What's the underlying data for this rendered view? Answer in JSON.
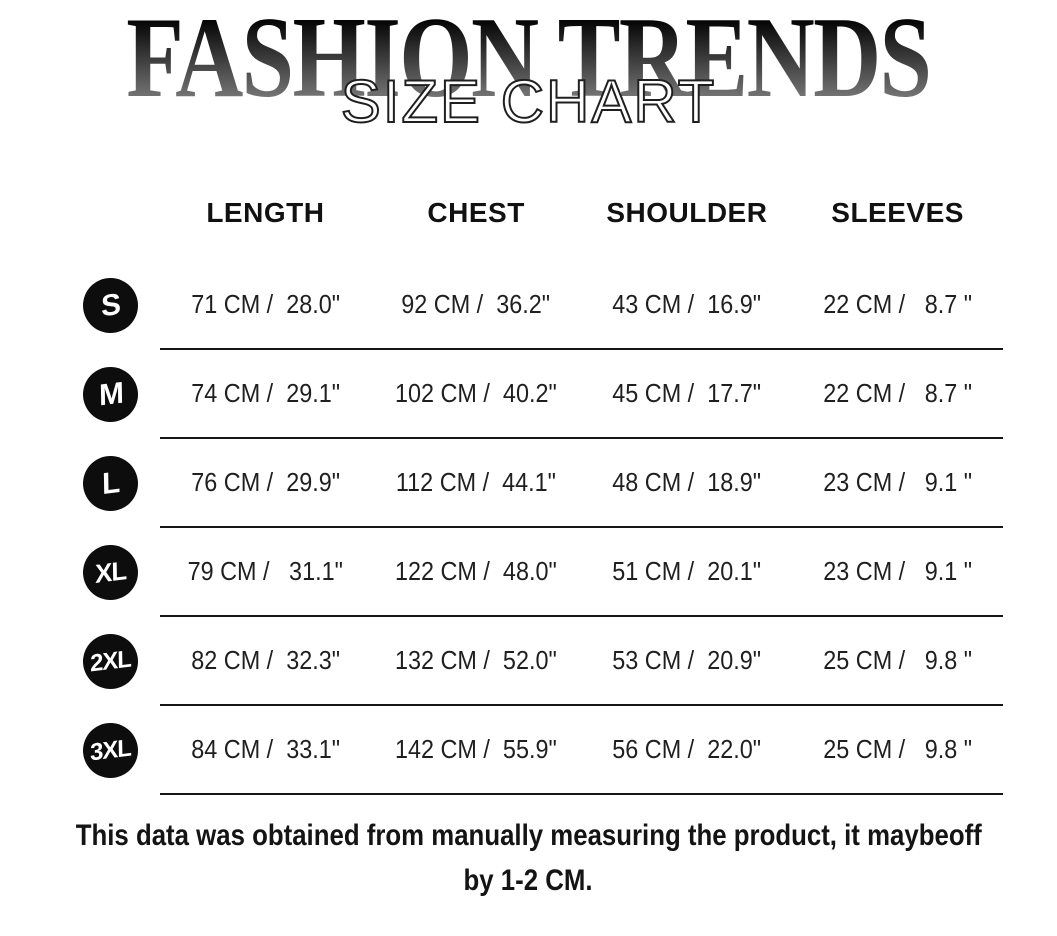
{
  "chart_data": {
    "type": "table",
    "title": "FASHION TRENDS",
    "subtitle": "SIZE CHART",
    "columns": [
      "LENGTH",
      "CHEST",
      "SHOULDER",
      "SLEEVES"
    ],
    "rows": [
      {
        "size": "S",
        "length": "71 CM /  28.0\"",
        "chest": "92 CM /  36.2\"",
        "shoulder": "43 CM /  16.9\"",
        "sleeves": "22 CM /   8.7 \""
      },
      {
        "size": "M",
        "length": "74 CM /  29.1\"",
        "chest": "102 CM /  40.2\"",
        "shoulder": "45 CM /  17.7\"",
        "sleeves": "22 CM /   8.7 \""
      },
      {
        "size": "L",
        "length": "76 CM /  29.9\"",
        "chest": "112 CM /  44.1\"",
        "shoulder": "48 CM /  18.9\"",
        "sleeves": "23 CM /   9.1 \""
      },
      {
        "size": "XL",
        "length": "79 CM /   31.1\"",
        "chest": "122 CM /  48.0\"",
        "shoulder": "51 CM /  20.1\"",
        "sleeves": "23 CM /   9.1 \""
      },
      {
        "size": "2XL",
        "length": "82 CM /  32.3\"",
        "chest": "132 CM /  52.0\"",
        "shoulder": "53 CM /  20.9\"",
        "sleeves": "25 CM /   9.8 \""
      },
      {
        "size": "3XL",
        "length": "84 CM /  33.1\"",
        "chest": "142 CM /  55.9\"",
        "shoulder": "56 CM /  22.0\"",
        "sleeves": "25 CM /   9.8 \""
      }
    ]
  },
  "footer": {
    "line1": "This data was obtained from manually measuring the product, it maybeoff",
    "line2": "by 1-2 CM."
  },
  "colors": {
    "badge_bg": "#0d0d0d",
    "badge_text": "#ffffff",
    "divider": "#161616",
    "title_gradient_top": "#050505",
    "title_gradient_bottom": "#8e8e8e"
  }
}
